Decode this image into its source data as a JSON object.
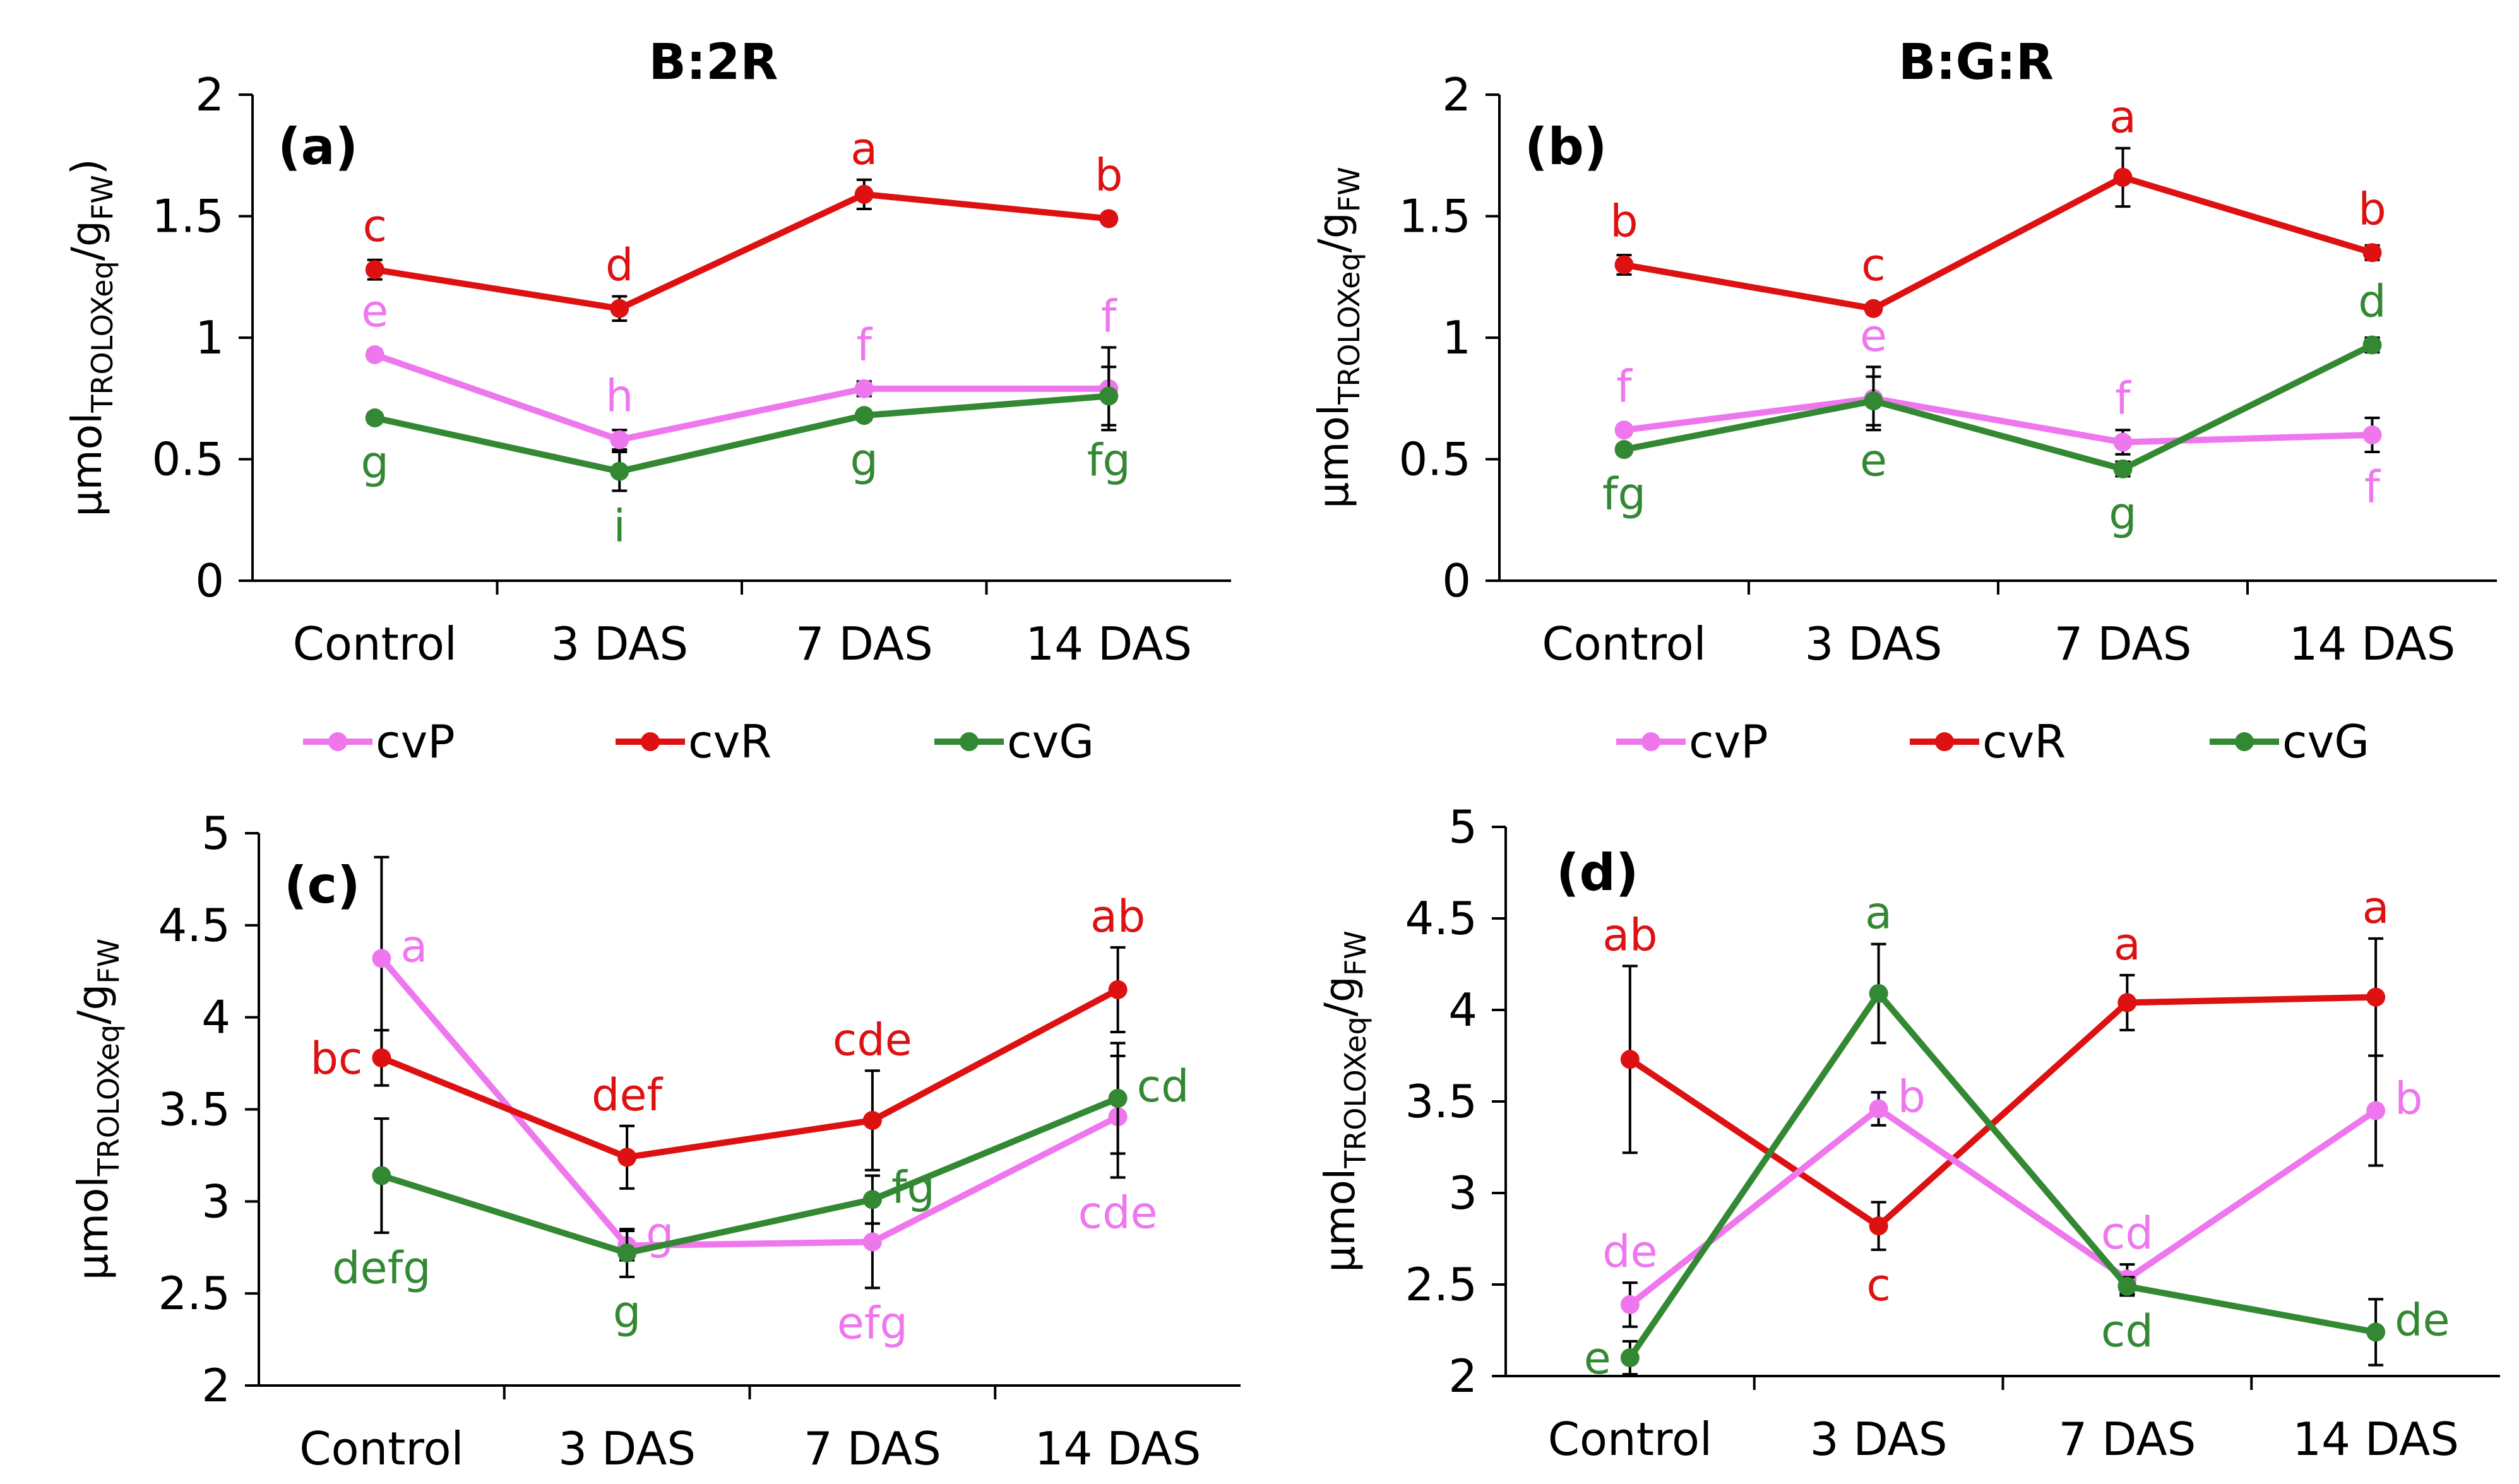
{
  "figure": {
    "colors": {
      "cvP": "#ee77ee",
      "cvR": "#dd1111",
      "cvG": "#338833",
      "axis": "#000000"
    }
  },
  "chart_data": [
    {
      "type": "line",
      "panel": "(a)",
      "title": "B:2R",
      "ylabel": "μmol_TROLOXeq/g_FW)",
      "ylabel_main": "μmol",
      "ylabel_sub1": "TROLOXeq",
      "ylabel_mid": "/g",
      "ylabel_sub2": "FW",
      "ylabel_tail": ")",
      "ylim": [
        0,
        2
      ],
      "yticks": [
        "0",
        "0.5",
        "1",
        "1.5",
        "2"
      ],
      "categories": [
        "Control",
        "3 DAS",
        "7 DAS",
        "14 DAS"
      ],
      "legend": "below",
      "series": [
        {
          "name": "cvR",
          "color": "#dd1111",
          "values": [
            1.28,
            1.12,
            1.59,
            1.49
          ],
          "errors": [
            0.04,
            0.05,
            0.06,
            0.02
          ],
          "letters": [
            "c",
            "d",
            "a",
            "b"
          ],
          "letter_pos": [
            "above",
            "above",
            "above",
            "above"
          ]
        },
        {
          "name": "cvP",
          "color": "#ee77ee",
          "values": [
            0.93,
            0.58,
            0.79,
            0.79
          ],
          "errors": [
            0.02,
            0.04,
            0.03,
            0.17
          ],
          "letters": [
            "e",
            "h",
            "f",
            "f"
          ],
          "letter_pos": [
            "above",
            "above",
            "above",
            "above"
          ]
        },
        {
          "name": "cvG",
          "color": "#338833",
          "values": [
            0.67,
            0.45,
            0.68,
            0.76
          ],
          "errors": [
            0.02,
            0.08,
            0.02,
            0.12
          ],
          "letters": [
            "g",
            "i",
            "g",
            "fg"
          ],
          "letter_pos": [
            "below",
            "below",
            "below",
            "below"
          ]
        }
      ]
    },
    {
      "type": "line",
      "panel": "(b)",
      "title": "B:G:R",
      "ylabel": "μmol_TROLOXeq/g_FW",
      "ylabel_main": "μmol",
      "ylabel_sub1": "TROLOXeq",
      "ylabel_mid": "/g",
      "ylabel_sub2": "FW",
      "ylabel_tail": "",
      "ylim": [
        0,
        2
      ],
      "yticks": [
        "0",
        "0.5",
        "1",
        "1.5",
        "2"
      ],
      "categories": [
        "Control",
        "3 DAS",
        "7 DAS",
        "14 DAS"
      ],
      "legend": "below",
      "series": [
        {
          "name": "cvR",
          "color": "#dd1111",
          "values": [
            1.3,
            1.12,
            1.66,
            1.35
          ],
          "errors": [
            0.04,
            0.02,
            0.12,
            0.03
          ],
          "letters": [
            "b",
            "c",
            "a",
            "b"
          ],
          "letter_pos": [
            "above",
            "above",
            "above",
            "above"
          ]
        },
        {
          "name": "cvP",
          "color": "#ee77ee",
          "values": [
            0.62,
            0.75,
            0.57,
            0.6
          ],
          "errors": [
            0.02,
            0.13,
            0.05,
            0.07
          ],
          "letters": [
            "f",
            "e",
            "f",
            "f"
          ],
          "letter_pos": [
            "above",
            "above",
            "above",
            "below"
          ]
        },
        {
          "name": "cvG",
          "color": "#338833",
          "values": [
            0.54,
            0.74,
            0.46,
            0.97
          ],
          "errors": [
            0.02,
            0.1,
            0.03,
            0.03
          ],
          "letters": [
            "fg",
            "e",
            "g",
            "d"
          ],
          "letter_pos": [
            "below",
            "below",
            "below",
            "above"
          ]
        }
      ]
    },
    {
      "type": "line",
      "panel": "(c)",
      "title": "",
      "ylabel": "μmol_TROLOXeq/g_FW",
      "ylabel_main": "μmol",
      "ylabel_sub1": "TROLOXeq",
      "ylabel_mid": "/g",
      "ylabel_sub2": "FW",
      "ylabel_tail": "",
      "ylim": [
        2,
        5
      ],
      "yticks": [
        "2",
        "2.5",
        "3",
        "3.5",
        "4",
        "4.5",
        "5"
      ],
      "categories": [
        "Control",
        "3 DAS",
        "7 DAS",
        "14 DAS"
      ],
      "legend": "none",
      "series": [
        {
          "name": "cvP",
          "color": "#ee77ee",
          "values": [
            4.32,
            2.76,
            2.78,
            3.46
          ],
          "errors": [
            0.55,
            0.08,
            0.25,
            0.33
          ],
          "letters": [
            "a",
            "g",
            "efg",
            "cde"
          ],
          "letter_pos": [
            "right",
            "right",
            "below",
            "below"
          ]
        },
        {
          "name": "cvR",
          "color": "#dd1111",
          "values": [
            3.78,
            3.24,
            3.44,
            4.15
          ],
          "errors": [
            0.15,
            0.17,
            0.27,
            0.23
          ],
          "letters": [
            "bc",
            "def",
            "cde",
            "ab"
          ],
          "letter_pos": [
            "left",
            "above",
            "above",
            "above"
          ]
        },
        {
          "name": "cvG",
          "color": "#338833",
          "values": [
            3.14,
            2.72,
            3.01,
            3.56
          ],
          "errors": [
            0.31,
            0.13,
            0.13,
            0.3
          ],
          "letters": [
            "defg",
            "g",
            "fg",
            "cd"
          ],
          "letter_pos": [
            "below",
            "below",
            "right",
            "right"
          ]
        }
      ]
    },
    {
      "type": "line",
      "panel": "(d)",
      "title": "",
      "ylabel": "μmol_TROLOXeq/g_FW",
      "ylabel_main": "μmol",
      "ylabel_sub1": "TROLOXeq",
      "ylabel_mid": "/g",
      "ylabel_sub2": "FW",
      "ylabel_tail": "",
      "ylim": [
        2,
        5
      ],
      "yticks": [
        "2",
        "2.5",
        "3",
        "3.5",
        "4",
        "4.5",
        "5"
      ],
      "categories": [
        "Control",
        "3 DAS",
        "7 DAS",
        "14 DAS"
      ],
      "legend": "none",
      "series": [
        {
          "name": "cvR",
          "color": "#dd1111",
          "values": [
            3.73,
            2.82,
            4.04,
            4.07
          ],
          "errors": [
            0.51,
            0.13,
            0.15,
            0.32
          ],
          "letters": [
            "ab",
            "c",
            "a",
            "a"
          ],
          "letter_pos": [
            "above",
            "below",
            "above",
            "above"
          ]
        },
        {
          "name": "cvP",
          "color": "#ee77ee",
          "values": [
            2.39,
            3.46,
            2.53,
            3.45
          ],
          "errors": [
            0.12,
            0.09,
            0.08,
            0.3
          ],
          "letters": [
            "de",
            "b",
            "cd",
            "b"
          ],
          "letter_pos": [
            "above",
            "right",
            "above",
            "right"
          ]
        },
        {
          "name": "cvG",
          "color": "#338833",
          "values": [
            2.1,
            4.09,
            2.49,
            2.24
          ],
          "errors": [
            0.09,
            0.27,
            0.05,
            0.18
          ],
          "letters": [
            "e",
            "a",
            "cd",
            "de"
          ],
          "letter_pos": [
            "left",
            "above",
            "below",
            "right"
          ]
        }
      ]
    }
  ],
  "legends": [
    {
      "items": [
        "cvP",
        "cvR",
        "cvG"
      ]
    },
    {
      "items": [
        "cvP",
        "cvR",
        "cvG"
      ]
    }
  ]
}
